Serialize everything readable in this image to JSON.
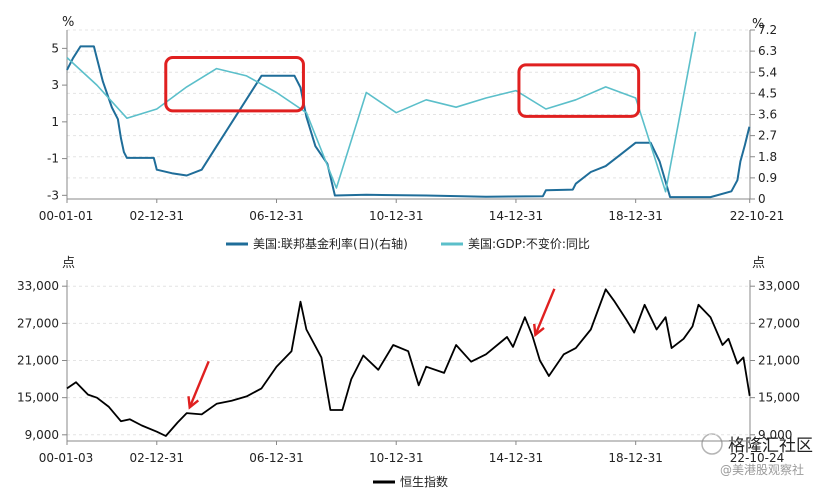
{
  "chart_data": [
    {
      "type": "line",
      "title": "",
      "y_unit_left": "%",
      "y_unit_right": "%",
      "x_ticks": [
        "00-01-01",
        "02-12-31",
        "06-12-31",
        "10-12-31",
        "14-12-31",
        "18-12-31",
        "22-10-21"
      ],
      "y_left_ticks": [
        "5",
        "3",
        "1",
        "-1",
        "-3"
      ],
      "y_right_ticks": [
        "7.2",
        "6.3",
        "5.4",
        "4.5",
        "3.6",
        "2.7",
        "1.8",
        "0.9",
        "0"
      ],
      "y_left_range": [
        -3.2,
        6.0
      ],
      "y_right_range": [
        0,
        7.2
      ],
      "grid": true,
      "legend_position": "bottom",
      "series": [
        {
          "name": "美国:联邦基金利率(日)(右轴)",
          "axis": "right",
          "color": "#1f6d99",
          "points": [
            [
              2000.0,
              5.5
            ],
            [
              2000.2,
              6.0
            ],
            [
              2000.45,
              6.5
            ],
            [
              2000.9,
              6.5
            ],
            [
              2001.0,
              6.0
            ],
            [
              2001.2,
              5.0
            ],
            [
              2001.5,
              3.9
            ],
            [
              2001.7,
              3.4
            ],
            [
              2001.8,
              2.6
            ],
            [
              2001.9,
              2.0
            ],
            [
              2002.0,
              1.75
            ],
            [
              2002.9,
              1.75
            ],
            [
              2003.0,
              1.25
            ],
            [
              2003.5,
              1.1
            ],
            [
              2004.0,
              1.0
            ],
            [
              2004.5,
              1.25
            ],
            [
              2005.0,
              2.25
            ],
            [
              2005.5,
              3.25
            ],
            [
              2006.0,
              4.25
            ],
            [
              2006.5,
              5.25
            ],
            [
              2007.6,
              5.25
            ],
            [
              2007.8,
              4.75
            ],
            [
              2008.0,
              3.5
            ],
            [
              2008.3,
              2.25
            ],
            [
              2008.7,
              1.5
            ],
            [
              2008.95,
              0.15
            ],
            [
              2010.0,
              0.18
            ],
            [
              2012.0,
              0.15
            ],
            [
              2014.0,
              0.1
            ],
            [
              2015.9,
              0.12
            ],
            [
              2016.0,
              0.37
            ],
            [
              2016.9,
              0.4
            ],
            [
              2017.0,
              0.65
            ],
            [
              2017.5,
              1.15
            ],
            [
              2018.0,
              1.4
            ],
            [
              2018.5,
              1.9
            ],
            [
              2019.0,
              2.4
            ],
            [
              2019.5,
              2.4
            ],
            [
              2019.8,
              1.6
            ],
            [
              2020.15,
              0.08
            ],
            [
              2021.5,
              0.08
            ],
            [
              2022.2,
              0.33
            ],
            [
              2022.4,
              0.8
            ],
            [
              2022.5,
              1.6
            ],
            [
              2022.65,
              2.3
            ],
            [
              2022.8,
              3.08
            ]
          ]
        },
        {
          "name": "美国:GDP:不变价:同比",
          "axis": "left",
          "color": "#5bbfca",
          "points": [
            [
              2000.0,
              4.5
            ],
            [
              2001.0,
              3.0
            ],
            [
              2002.0,
              1.2
            ],
            [
              2003.0,
              1.7
            ],
            [
              2004.0,
              2.9
            ],
            [
              2005.0,
              3.9
            ],
            [
              2006.0,
              3.5
            ],
            [
              2007.0,
              2.6
            ],
            [
              2008.0,
              1.5
            ],
            [
              2009.0,
              -2.6
            ],
            [
              2010.0,
              2.6
            ],
            [
              2011.0,
              1.5
            ],
            [
              2012.0,
              2.2
            ],
            [
              2013.0,
              1.8
            ],
            [
              2014.0,
              2.3
            ],
            [
              2015.0,
              2.7
            ],
            [
              2016.0,
              1.7
            ],
            [
              2017.0,
              2.2
            ],
            [
              2018.0,
              2.9
            ],
            [
              2019.0,
              2.3
            ],
            [
              2020.0,
              -2.8
            ],
            [
              2021.0,
              5.9
            ]
          ]
        }
      ],
      "legend": [
        "美国:联邦基金利率(日)(右轴)",
        "美国:GDP:不变价:同比"
      ],
      "annotation_boxes": [
        {
          "x_range": [
            2003.3,
            2007.9
          ],
          "y_range_left": [
            1.6,
            4.5
          ],
          "color": "#e02020"
        },
        {
          "x_range": [
            2015.1,
            2019.1
          ],
          "y_range_left": [
            1.3,
            4.1
          ],
          "color": "#e02020"
        }
      ]
    },
    {
      "type": "line",
      "title": "",
      "y_unit_left": "点",
      "y_unit_right": "点",
      "x_ticks": [
        "00-01-03",
        "02-12-31",
        "06-12-31",
        "10-12-31",
        "14-12-31",
        "18-12-31",
        "22-10-24"
      ],
      "y_left_ticks": [
        "33,000",
        "27,000",
        "21,000",
        "15,000",
        "9,000"
      ],
      "y_right_ticks": [
        "33,000",
        "27,000",
        "21,000",
        "15,000",
        "9,000"
      ],
      "y_range": [
        8000,
        34000
      ],
      "grid": true,
      "legend_position": "bottom",
      "series": [
        {
          "name": "恒生指数",
          "color": "#000000",
          "points": [
            [
              2000.0,
              16500
            ],
            [
              2000.3,
              17500
            ],
            [
              2000.7,
              15500
            ],
            [
              2001.0,
              15000
            ],
            [
              2001.4,
              13500
            ],
            [
              2001.8,
              11200
            ],
            [
              2002.1,
              11500
            ],
            [
              2002.5,
              10500
            ],
            [
              2003.0,
              9500
            ],
            [
              2003.3,
              8800
            ],
            [
              2003.7,
              11000
            ],
            [
              2004.0,
              12500
            ],
            [
              2004.5,
              12300
            ],
            [
              2005.0,
              14000
            ],
            [
              2005.5,
              14500
            ],
            [
              2006.0,
              15200
            ],
            [
              2006.5,
              16500
            ],
            [
              2007.0,
              20000
            ],
            [
              2007.5,
              22500
            ],
            [
              2007.8,
              30500
            ],
            [
              2008.0,
              26000
            ],
            [
              2008.5,
              21500
            ],
            [
              2008.8,
              13000
            ],
            [
              2009.2,
              13000
            ],
            [
              2009.5,
              18000
            ],
            [
              2009.9,
              21800
            ],
            [
              2010.4,
              19500
            ],
            [
              2010.9,
              23500
            ],
            [
              2011.4,
              22500
            ],
            [
              2011.75,
              17000
            ],
            [
              2012.0,
              20000
            ],
            [
              2012.6,
              19000
            ],
            [
              2013.0,
              23500
            ],
            [
              2013.5,
              20800
            ],
            [
              2014.0,
              22000
            ],
            [
              2014.7,
              24800
            ],
            [
              2014.9,
              23200
            ],
            [
              2015.3,
              28000
            ],
            [
              2015.55,
              25000
            ],
            [
              2015.8,
              21000
            ],
            [
              2016.1,
              18500
            ],
            [
              2016.6,
              22000
            ],
            [
              2017.0,
              23000
            ],
            [
              2017.5,
              26000
            ],
            [
              2018.0,
              32500
            ],
            [
              2018.3,
              30500
            ],
            [
              2018.7,
              27500
            ],
            [
              2018.95,
              25500
            ],
            [
              2019.3,
              30000
            ],
            [
              2019.7,
              26000
            ],
            [
              2020.0,
              28000
            ],
            [
              2020.2,
              23000
            ],
            [
              2020.6,
              24500
            ],
            [
              2020.9,
              26500
            ],
            [
              2021.1,
              30000
            ],
            [
              2021.5,
              28000
            ],
            [
              2021.9,
              23500
            ],
            [
              2022.1,
              24500
            ],
            [
              2022.4,
              20500
            ],
            [
              2022.6,
              21500
            ],
            [
              2022.81,
              15300
            ]
          ]
        }
      ],
      "legend": [
        "恒生指数"
      ],
      "annotation_arrows": [
        {
          "tip": [
            2004.1,
            12800
          ],
          "color": "#e02020"
        },
        {
          "tip": [
            2015.65,
            24500
          ],
          "color": "#e02020"
        }
      ]
    }
  ],
  "watermark": {
    "logo_text": "格隆汇社区",
    "handle": "@美港股观察社"
  }
}
